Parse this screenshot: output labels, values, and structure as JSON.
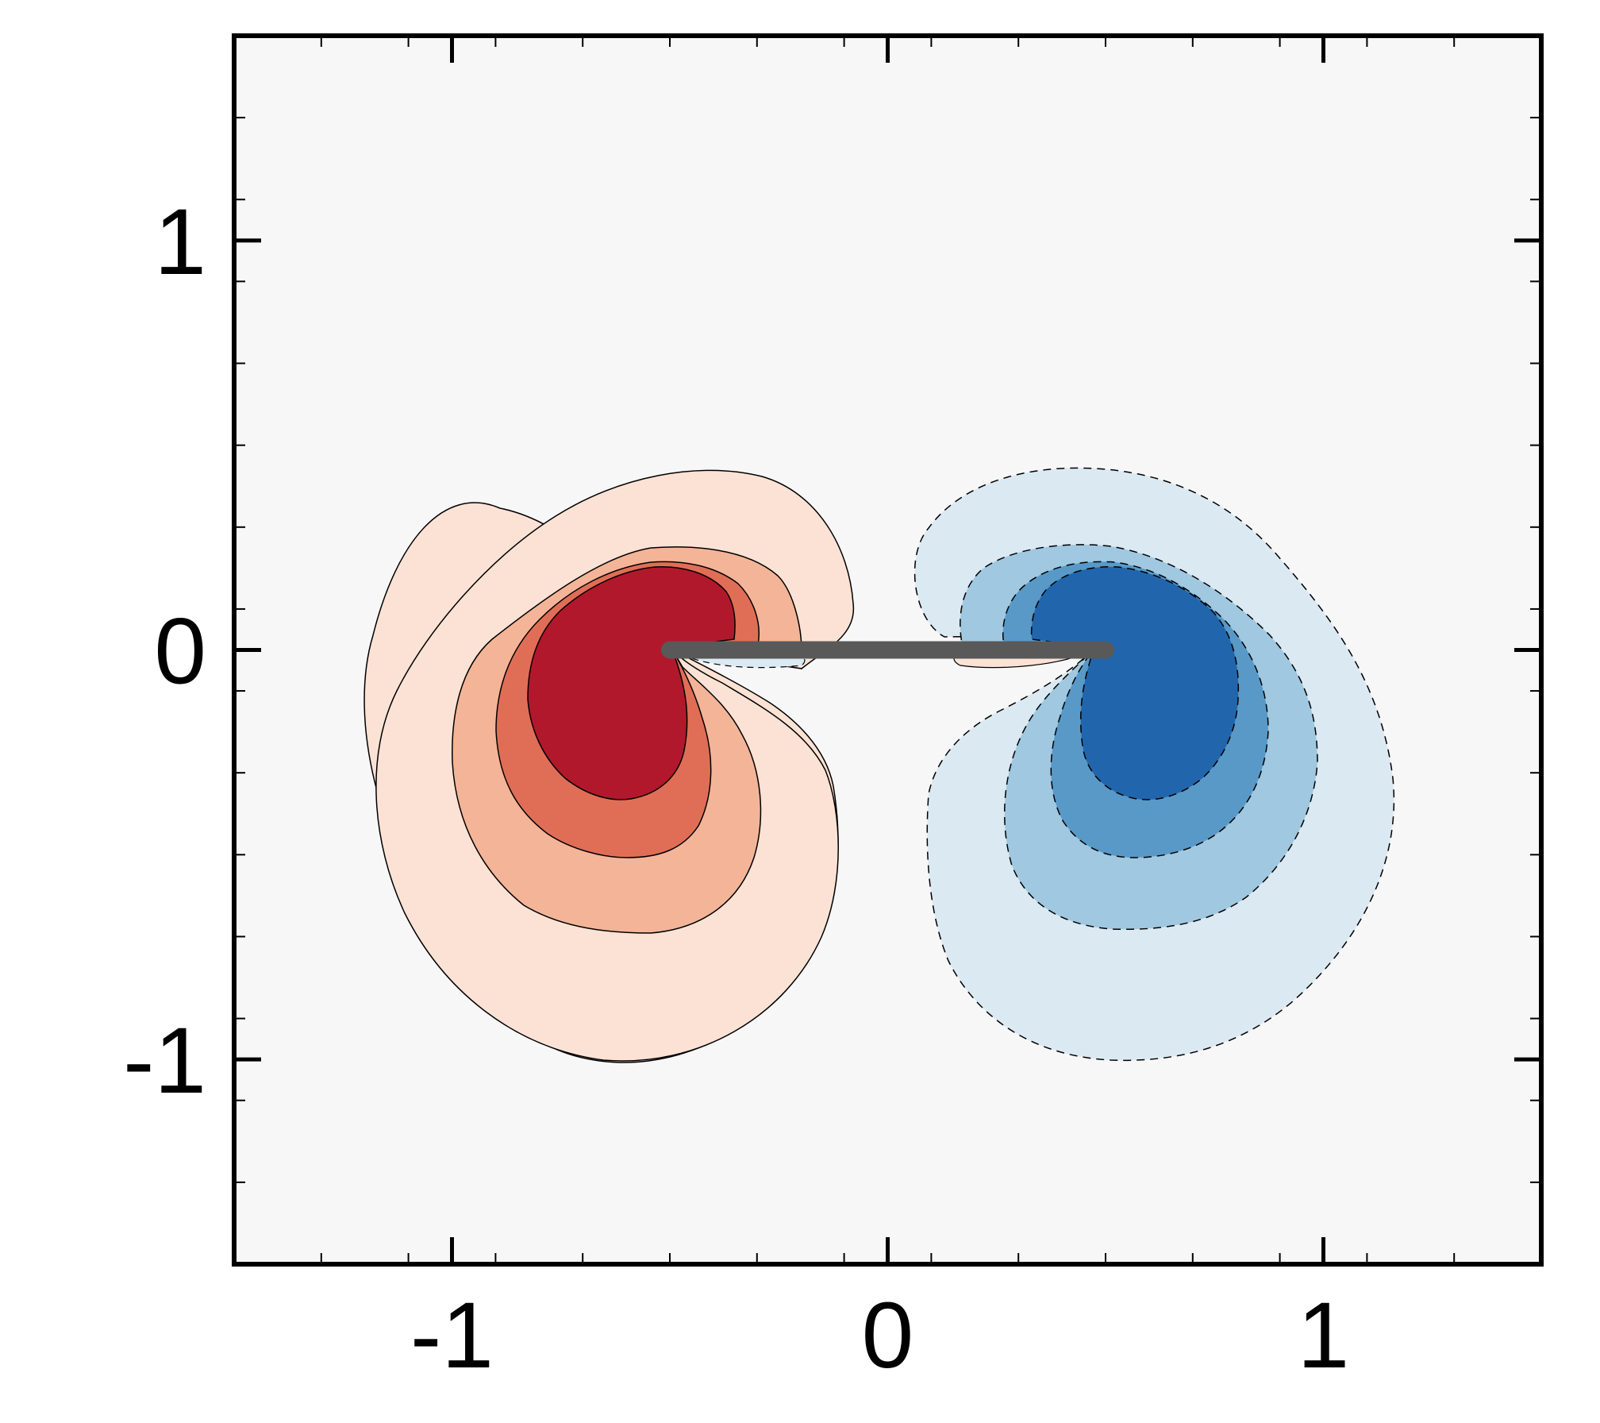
{
  "chart_data": {
    "type": "heatmap",
    "title": "",
    "xlabel": "",
    "ylabel": "",
    "xlim": [
      -1.5,
      1.5
    ],
    "ylim": [
      -1.5,
      1.5
    ],
    "x_ticks": [
      {
        "value": -1,
        "label": "-1"
      },
      {
        "value": 0,
        "label": "0"
      },
      {
        "value": 1,
        "label": "1"
      }
    ],
    "y_ticks": [
      {
        "value": 1,
        "label": "1"
      },
      {
        "value": 0,
        "label": "0"
      },
      {
        "value": -1,
        "label": "-1"
      }
    ],
    "minor_tick_step": 0.2,
    "grid": false,
    "legend": "none",
    "plate": {
      "x": [
        -0.5,
        0.5
      ],
      "y": 0,
      "color": "#595959"
    },
    "colors": {
      "background": "#f7f7f7",
      "positive_levels": [
        "#fbe2d5",
        "#f4b498",
        "#e06e56",
        "#b2182b"
      ],
      "negative_levels": [
        "#dbe9f3",
        "#a0c8e0",
        "#5899c8",
        "#2166ac"
      ],
      "contour_line": "#000000"
    },
    "contour_levels": [
      1,
      2,
      3,
      4
    ],
    "vortices": [
      {
        "sign": "positive",
        "core_x": -0.62,
        "core_y": -0.15,
        "line_style": "solid"
      },
      {
        "sign": "negative",
        "core_x": 0.62,
        "core_y": -0.15,
        "line_style": "dashed"
      }
    ]
  }
}
